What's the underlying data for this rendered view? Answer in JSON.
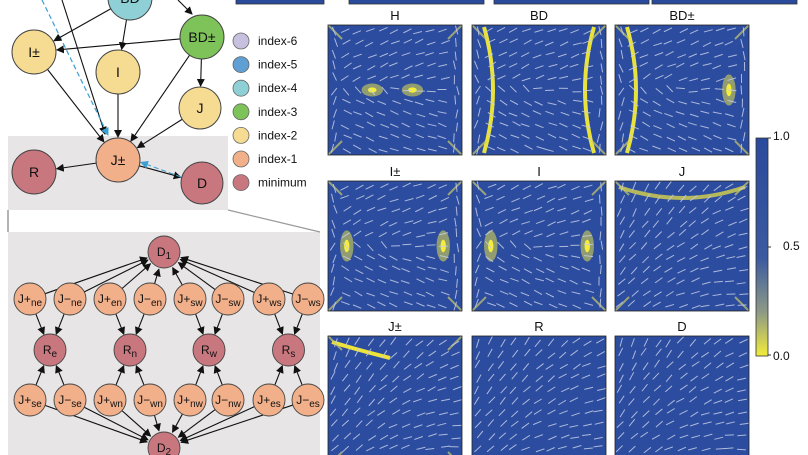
{
  "top_graph": {
    "nodes": [
      {
        "id": "BD",
        "label": "BD",
        "color": "#8fd0d6"
      },
      {
        "id": "BDpm",
        "label": "BD±",
        "color": "#7ec25a"
      },
      {
        "id": "Ipm",
        "label": "I±",
        "color": "#f6dc92"
      },
      {
        "id": "I",
        "label": "I",
        "color": "#f6dc92"
      },
      {
        "id": "J",
        "label": "J",
        "color": "#f6dc92"
      },
      {
        "id": "Jpm",
        "label": "J±",
        "color": "#f2b08a"
      },
      {
        "id": "R",
        "label": "R",
        "color": "#c9777f"
      },
      {
        "id": "D",
        "label": "D",
        "color": "#c9777f"
      }
    ]
  },
  "legend": [
    {
      "label": "index-6",
      "color": "#c7c0de"
    },
    {
      "label": "index-5",
      "color": "#5f9fd3"
    },
    {
      "label": "index-4",
      "color": "#8fd0d6"
    },
    {
      "label": "index-3",
      "color": "#7ec25a"
    },
    {
      "label": "index-2",
      "color": "#f6dc92"
    },
    {
      "label": "index-1",
      "color": "#f2b08a"
    },
    {
      "label": "minimum",
      "color": "#c9777f"
    }
  ],
  "bottom_graph": {
    "top_node": {
      "base": "D",
      "sub": "1"
    },
    "bottom_node": {
      "base": "D",
      "sub": "2"
    },
    "groups": [
      {
        "a": {
          "base": "J+",
          "sub": "ne"
        },
        "b": {
          "base": "J−",
          "sub": "ne"
        },
        "r": {
          "base": "R",
          "sub": "e"
        },
        "c": {
          "base": "J+",
          "sub": "se"
        },
        "d": {
          "base": "J−",
          "sub": "se"
        }
      },
      {
        "a": {
          "base": "J+",
          "sub": "en"
        },
        "b": {
          "base": "J−",
          "sub": "en"
        },
        "r": {
          "base": "R",
          "sub": "n"
        },
        "c": {
          "base": "J+",
          "sub": "wn"
        },
        "d": {
          "base": "J−",
          "sub": "wn"
        }
      },
      {
        "a": {
          "base": "J+",
          "sub": "sw"
        },
        "b": {
          "base": "J−",
          "sub": "sw"
        },
        "r": {
          "base": "R",
          "sub": "w"
        },
        "c": {
          "base": "J+",
          "sub": "nw"
        },
        "d": {
          "base": "J−",
          "sub": "nw"
        }
      },
      {
        "a": {
          "base": "J+",
          "sub": "ws"
        },
        "b": {
          "base": "J−",
          "sub": "ws"
        },
        "r": {
          "base": "R",
          "sub": "s"
        },
        "c": {
          "base": "J+",
          "sub": "es"
        },
        "d": {
          "base": "J−",
          "sub": "es"
        }
      }
    ]
  },
  "panels": [
    {
      "title": "H"
    },
    {
      "title": "BD"
    },
    {
      "title": "BD±"
    },
    {
      "title": "I±"
    },
    {
      "title": "I"
    },
    {
      "title": "J"
    },
    {
      "title": "J±"
    },
    {
      "title": "R"
    },
    {
      "title": "D"
    }
  ],
  "colorbar": {
    "max_label": "1.0",
    "mid_label": "0.5",
    "min_label": "0.0",
    "low_color": "#f2ec3a",
    "high_color": "#2a4a9c"
  }
}
